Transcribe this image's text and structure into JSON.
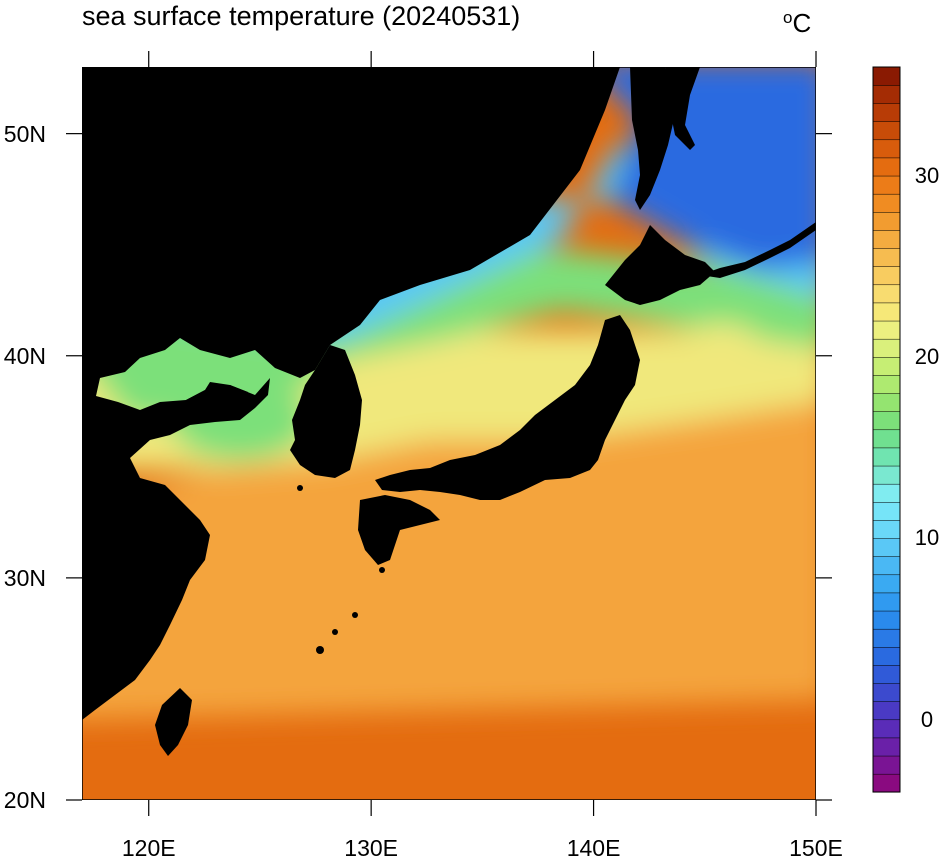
{
  "figure": {
    "title": "sea surface temperature (20240531)",
    "units_prefix": "o",
    "units_suffix": "C"
  },
  "axes": {
    "lat_ticks": [
      {
        "value": 50,
        "label": "50N"
      },
      {
        "value": 40,
        "label": "40N"
      },
      {
        "value": 30,
        "label": "30N"
      },
      {
        "value": 20,
        "label": "20N"
      }
    ],
    "lon_ticks": [
      {
        "value": 120,
        "label": "120E"
      },
      {
        "value": 130,
        "label": "130E"
      },
      {
        "value": 140,
        "label": "140E"
      },
      {
        "value": 150,
        "label": "150E"
      }
    ],
    "lon_range": [
      117,
      150
    ],
    "lat_range": [
      20,
      53
    ]
  },
  "colorbar": {
    "range": [
      -4,
      36
    ],
    "levels": 40,
    "tick_labels": [
      {
        "value": 30,
        "label": "30"
      },
      {
        "value": 20,
        "label": "20"
      },
      {
        "value": 10,
        "label": "10"
      },
      {
        "value": 0,
        "label": "0"
      }
    ],
    "colors": [
      "#8a0a80",
      "#7a1494",
      "#6a20a8",
      "#5a2cb8",
      "#4a3ac4",
      "#3c4ace",
      "#305ad8",
      "#2a6ae0",
      "#2a7ae6",
      "#2a8aec",
      "#309af0",
      "#3aaaf2",
      "#4ab8f4",
      "#5ac8f6",
      "#6ad8f8",
      "#76e4f8",
      "#80ecf0",
      "#7ae8d0",
      "#70e4b0",
      "#70e090",
      "#7ce07a",
      "#94e470",
      "#aeea70",
      "#c6ee74",
      "#daf07c",
      "#ecf080",
      "#f6e878",
      "#f8dc70",
      "#f8cc60",
      "#f6bc50",
      "#f4ac40",
      "#f29c30",
      "#f08c22",
      "#ec7c18",
      "#e46c10",
      "#d85c0c",
      "#c84c08",
      "#b83c06",
      "#a42c04",
      "#8a1a02"
    ]
  },
  "map": {
    "land_color": "#000000",
    "ocean_colors": {
      "cold": "#2a6ae0",
      "cool": "#5ac8f6",
      "mild": "#7ce07a",
      "warm": "#f0e87c",
      "hot": "#f4a43c",
      "tropical": "#e46c10"
    }
  }
}
